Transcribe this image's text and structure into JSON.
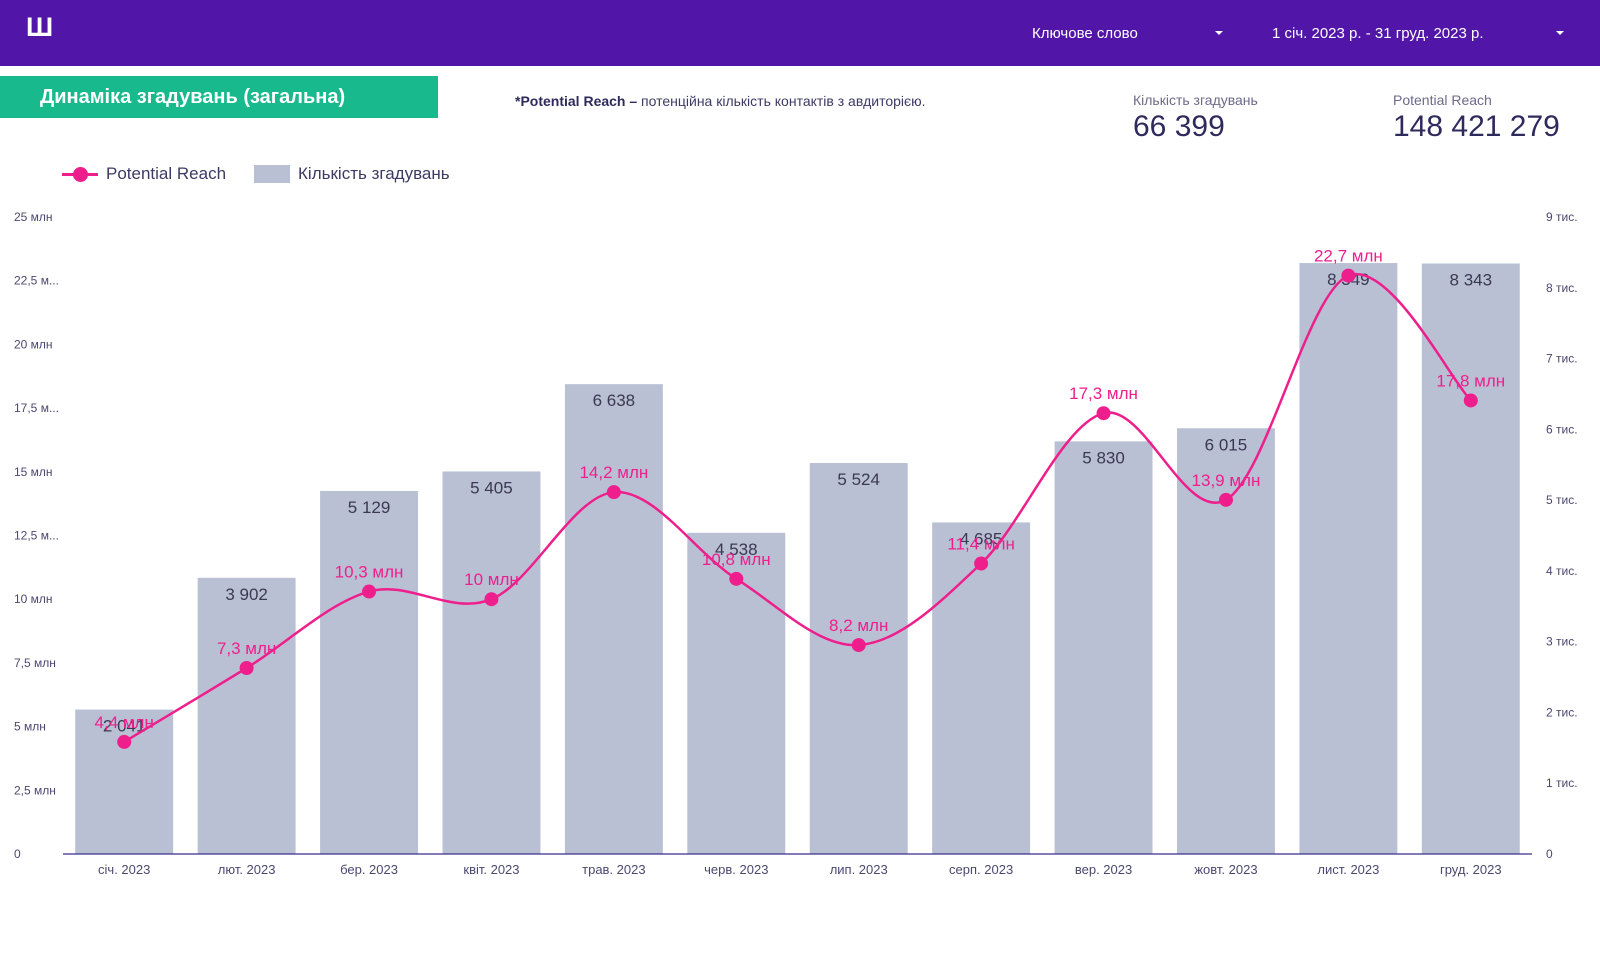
{
  "header": {
    "logo": "Ш",
    "keyword_label": "Ключове слово",
    "date_range": "1 січ. 2023 р. - 31 груд. 2023 р."
  },
  "title": "Динаміка згадувань (загальна)",
  "note": {
    "term": "*Potential Reach –",
    "text": "потенційна кількість контактів з авдиторією."
  },
  "kpis": {
    "mentions": {
      "label": "Кількість згадувань",
      "value": "66 399"
    },
    "reach": {
      "label": "Potential Reach",
      "value": "148 421 279"
    }
  },
  "colors": {
    "header_bg": "#5115a8",
    "title_bg": "#18b98c",
    "line": "#ee1f8c",
    "bar": "#b9c0d4"
  },
  "chart_data": {
    "type": "bar",
    "categories": [
      "січ. 2023",
      "лют. 2023",
      "бер. 2023",
      "квіт. 2023",
      "трав. 2023",
      "черв. 2023",
      "лип. 2023",
      "серп. 2023",
      "вер. 2023",
      "жовт. 2023",
      "лист. 2023",
      "груд. 2023"
    ],
    "legend": [
      "Potential Reach",
      "Кількість згадувань"
    ],
    "legend_position": "top-left",
    "series": [
      {
        "name": "Кількість згадувань",
        "type": "bar",
        "axis": "right",
        "values": [
          2041,
          3902,
          5129,
          5405,
          6638,
          4538,
          5524,
          4685,
          5830,
          6015,
          8349,
          8343
        ],
        "labels": [
          "2 041",
          "3 902",
          "5 129",
          "5 405",
          "6 638",
          "4 538",
          "5 524",
          "4 685",
          "5 830",
          "6 015",
          "8 349",
          "8 343"
        ]
      },
      {
        "name": "Potential Reach",
        "type": "line",
        "axis": "left",
        "values": [
          4.4,
          7.3,
          10.3,
          10.0,
          14.2,
          10.8,
          8.2,
          11.4,
          17.3,
          13.9,
          22.7,
          17.8
        ],
        "labels": [
          "4,4 млн",
          "7,3 млн",
          "10,3 млн",
          "10 млн",
          "14,2 млн",
          "10,8 млн",
          "8,2 млн",
          "11,4 млн",
          "17,3 млн",
          "13,9 млн",
          "22,7 млн",
          "17,8 млн"
        ]
      }
    ],
    "y_left": {
      "range": [
        0,
        25
      ],
      "ticks": [
        0,
        2.5,
        5,
        7.5,
        10,
        12.5,
        15,
        17.5,
        20,
        22.5,
        25
      ],
      "tick_labels": [
        "0",
        "2,5 млн",
        "5 млн",
        "7,5 млн",
        "10 млн",
        "12,5 м...",
        "15 млн",
        "17,5 м...",
        "20 млн",
        "22,5 м...",
        "25 млн"
      ]
    },
    "y_right": {
      "range": [
        0,
        9000
      ],
      "ticks": [
        0,
        1000,
        2000,
        3000,
        4000,
        5000,
        6000,
        7000,
        8000,
        9000
      ],
      "tick_labels": [
        "0",
        "1 тис.",
        "2 тис.",
        "3 тис.",
        "4 тис.",
        "5 тис.",
        "6 тис.",
        "7 тис.",
        "8 тис.",
        "9 тис."
      ]
    },
    "grid": false
  }
}
